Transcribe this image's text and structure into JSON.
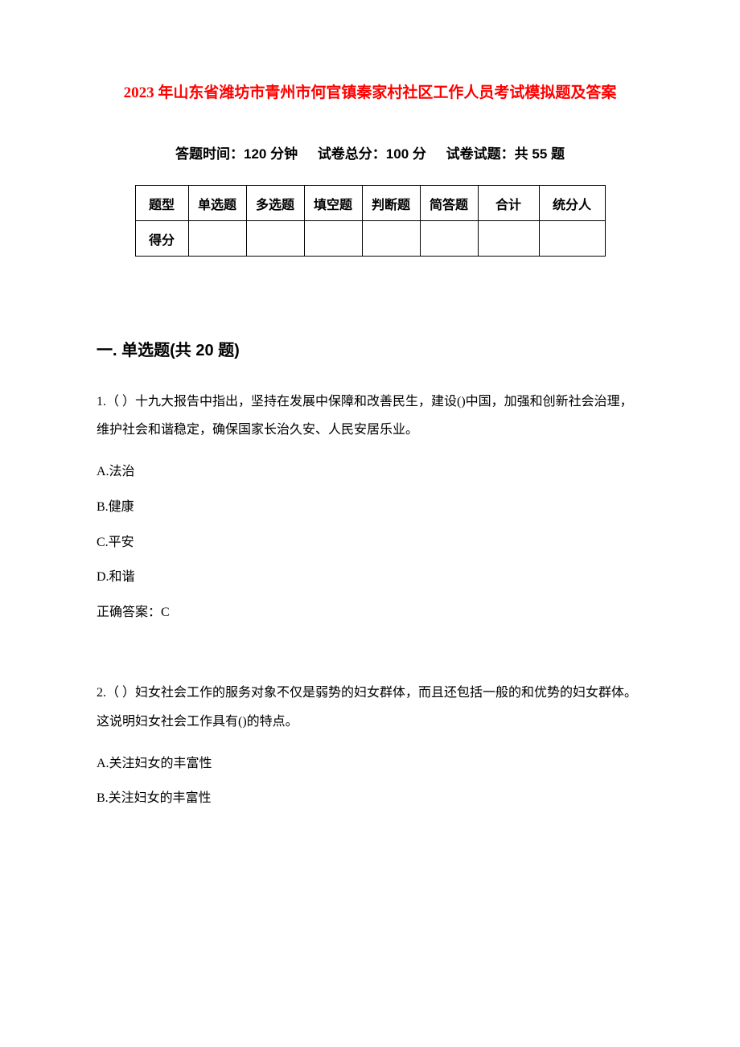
{
  "title": "2023 年山东省潍坊市青州市何官镇秦家村社区工作人员考试模拟题及答案",
  "meta": {
    "time": "答题时间：120 分钟",
    "total": "试卷总分：100 分",
    "count": "试卷试题：共 55 题"
  },
  "table": {
    "row1": [
      "题型",
      "单选题",
      "多选题",
      "填空题",
      "判断题",
      "简答题",
      "合计",
      "统分人"
    ],
    "row2_label": "得分"
  },
  "section1_title": "一. 单选题(共 20 题)",
  "q1": {
    "stem": "1.（ ）十九大报告中指出，坚持在发展中保障和改善民生，建设()中国，加强和创新社会治理，维护社会和谐稳定，确保国家长治久安、人民安居乐业。",
    "A": "A.法治",
    "B": "B.健康",
    "C": "C.平安",
    "D": "D.和谐",
    "ans": "正确答案：C"
  },
  "q2": {
    "stem": "2.（ ）妇女社会工作的服务对象不仅是弱势的妇女群体，而且还包括一般的和优势的妇女群体。这说明妇女社会工作具有()的特点。",
    "A": "A.关注妇女的丰富性",
    "B": "B.关注妇女的丰富性"
  }
}
